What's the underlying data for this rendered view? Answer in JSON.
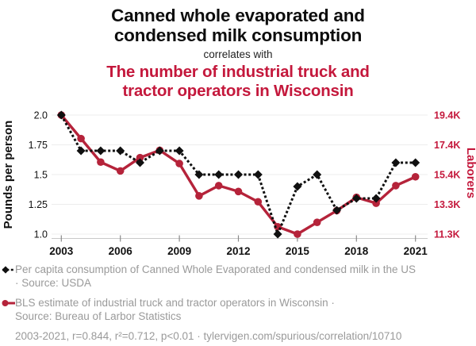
{
  "header": {
    "title_lines": [
      "Canned whole evaporated and",
      "condensed milk consumption"
    ],
    "title_color": "#0d0d0d",
    "connector": "correlates with",
    "subtitle_lines": [
      "The number of industrial truck and",
      "tractor operators in Wisconsin"
    ],
    "subtitle_color": "#c4183c"
  },
  "chart_data": {
    "type": "line",
    "x": [
      2003,
      2004,
      2005,
      2006,
      2007,
      2008,
      2009,
      2010,
      2011,
      2012,
      2013,
      2014,
      2015,
      2016,
      2017,
      2018,
      2019,
      2020,
      2021
    ],
    "x_axis": {
      "ticks": [
        2003,
        2006,
        2009,
        2012,
        2015,
        2018,
        2021
      ]
    },
    "left_axis": {
      "label": "Pounds per person",
      "range": [
        1.0,
        2.0
      ],
      "tick_values": [
        1.0,
        1.25,
        1.5,
        1.75,
        2.0
      ],
      "tick_labels": [
        "1.0",
        "1.25",
        "1.5",
        "1.75",
        "2.0"
      ],
      "color": "#111111"
    },
    "right_axis": {
      "label": "Laborers",
      "range": [
        11.3,
        19.4
      ],
      "tick_labels": [
        "11.3K",
        "13.3K",
        "15.4K",
        "17.4K",
        "19.4K"
      ],
      "color": "#c4183c"
    },
    "grid": "horizontal",
    "legend_position": "bottom",
    "series": [
      {
        "name": "Per capita consumption of Canned Whole Evaporated and condensed milk in the US",
        "axis": "left",
        "unit": "pounds per person",
        "color": "#101010",
        "line_style": "dashed",
        "marker": "diamond",
        "values": [
          2.0,
          1.7,
          1.7,
          1.7,
          1.6,
          1.7,
          1.7,
          1.5,
          1.5,
          1.5,
          1.5,
          1.0,
          1.4,
          1.5,
          1.2,
          1.3,
          1.3,
          1.6,
          1.6
        ]
      },
      {
        "name": "BLS estimate of industrial truck and tractor operators in Wisconsin",
        "axis": "right",
        "unit": "thousand laborers",
        "color": "#b5233a",
        "line_style": "solid",
        "marker": "circle",
        "values": [
          19.4,
          17.8,
          16.2,
          15.6,
          16.5,
          17.0,
          16.1,
          13.9,
          14.6,
          14.2,
          13.5,
          11.8,
          11.3,
          12.1,
          12.9,
          13.8,
          13.4,
          14.6,
          15.2
        ]
      }
    ]
  },
  "legend": [
    {
      "marker": "black-diamond-dashed-line",
      "lines": [
        "Per capita consumption of Canned Whole Evaporated and condensed milk in the US",
        "· Source: USDA"
      ]
    },
    {
      "marker": "red-circle-solid-line",
      "lines": [
        "BLS estimate of industrial truck and tractor operators in Wisconsin ·",
        "Source: Bureau of Larbor Statistics"
      ]
    }
  ],
  "footer": {
    "stats": "2003-2021, r=0.844, r²=0.712, p<0.01 · tylervigen.com/spurious/correlation/10710"
  }
}
